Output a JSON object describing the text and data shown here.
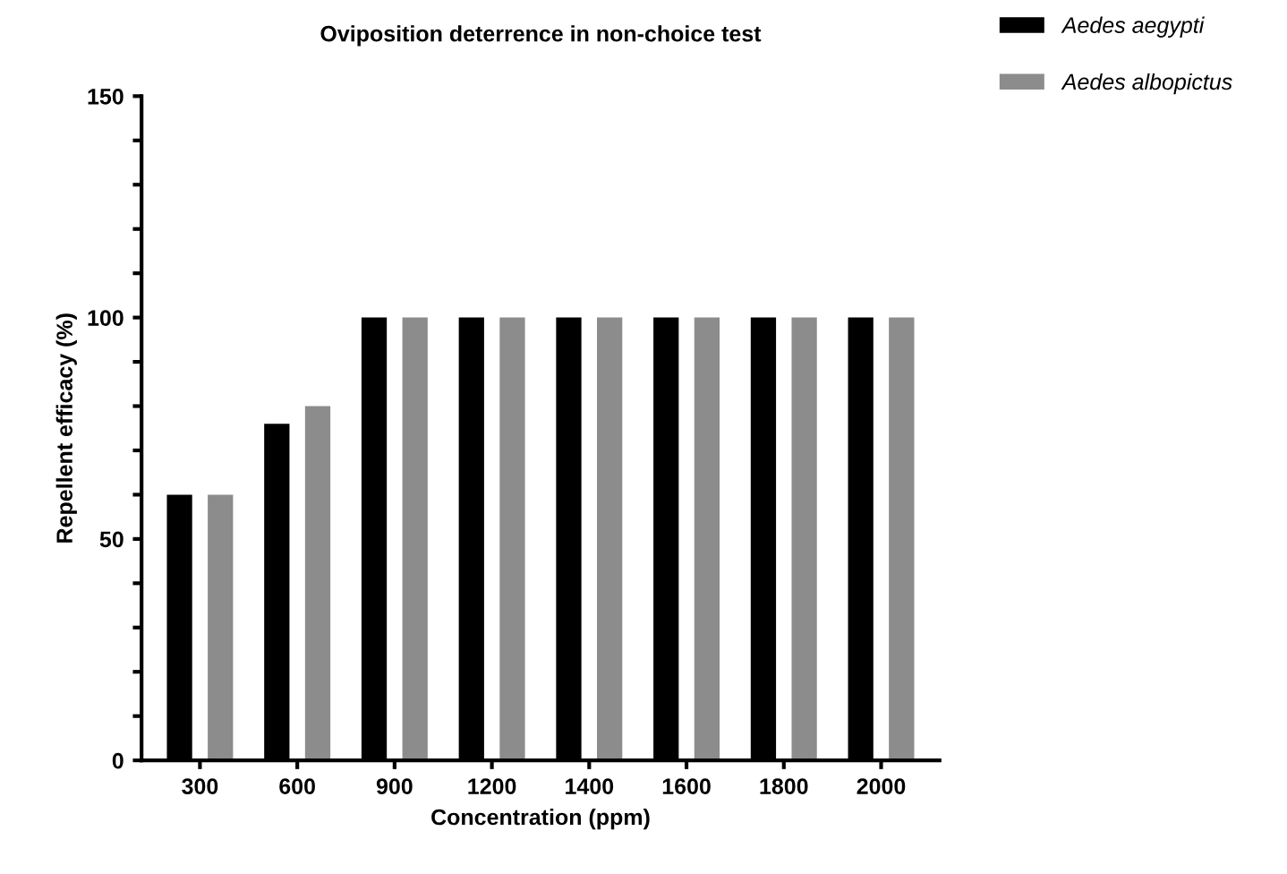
{
  "chart_data": {
    "type": "bar",
    "title": "Oviposition deterrence in non-choice test",
    "xlabel": "Concentration (ppm)",
    "ylabel": "Repellent efficacy (%)",
    "categories": [
      "300",
      "600",
      "900",
      "1200",
      "1400",
      "1600",
      "1800",
      "2000"
    ],
    "series": [
      {
        "name": "Aedes aegypti",
        "color": "#000000",
        "values": [
          60,
          76,
          100,
          100,
          100,
          100,
          100,
          100
        ]
      },
      {
        "name": "Aedes albopictus",
        "color": "#8c8c8c",
        "values": [
          60,
          80,
          100,
          100,
          100,
          100,
          100,
          100
        ]
      }
    ],
    "ylim": [
      0,
      150
    ],
    "yticks": [
      0,
      {
        "value": 10,
        "label": null
      },
      {
        "value": 20,
        "label": null
      },
      {
        "value": 30,
        "label": null
      },
      {
        "value": 40,
        "label": null
      },
      50,
      {
        "value": 60,
        "label": null
      },
      {
        "value": 70,
        "label": null
      },
      {
        "value": 80,
        "label": null
      },
      {
        "value": 90,
        "label": null
      },
      100,
      {
        "value": 110,
        "label": null
      },
      {
        "value": 120,
        "label": null
      },
      {
        "value": 130,
        "label": null
      },
      {
        "value": 140,
        "label": null
      },
      150
    ],
    "grid": false,
    "legend": "top right"
  }
}
